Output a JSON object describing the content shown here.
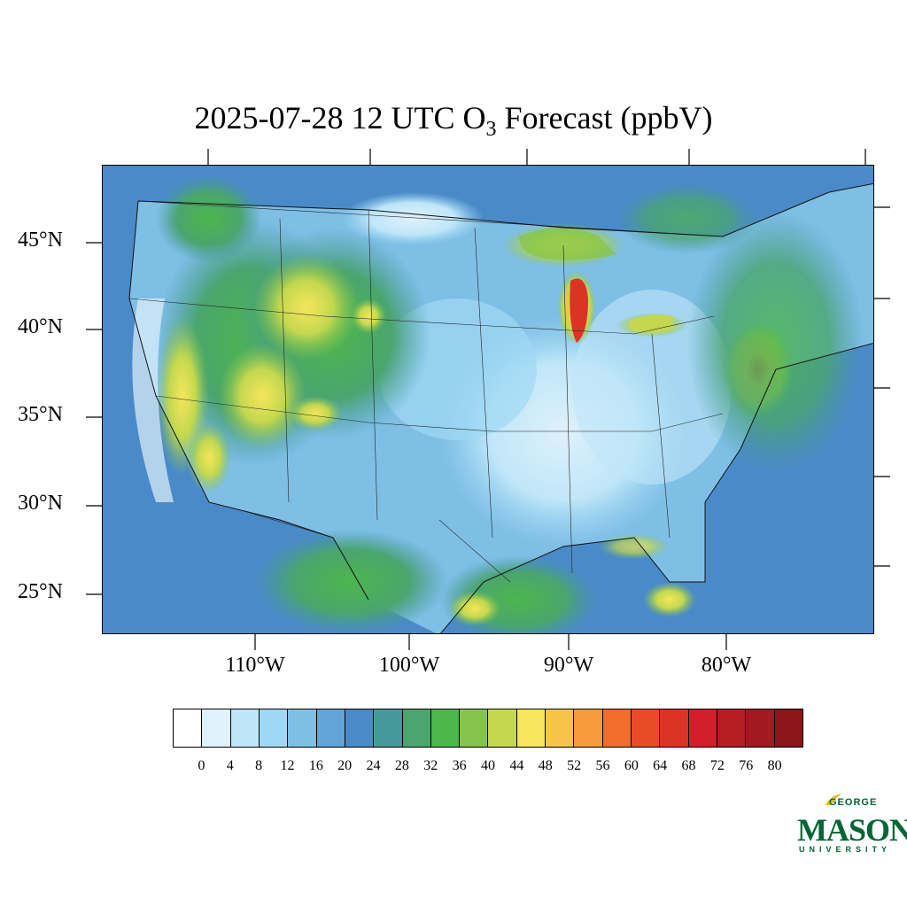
{
  "title": "2025-07-28 12 UTC O",
  "title_sub": "3",
  "title_rest": " Forecast (ppbV)",
  "lat_labels": [
    "45°N",
    "40°N",
    "35°N",
    "30°N",
    "25°N"
  ],
  "lon_labels": [
    "110°W",
    "100°W",
    "90°W",
    "80°W"
  ],
  "colorbar": {
    "labels": [
      "0",
      "4",
      "8",
      "12",
      "16",
      "20",
      "24",
      "28",
      "32",
      "36",
      "40",
      "44",
      "48",
      "52",
      "56",
      "60",
      "64",
      "68",
      "72",
      "76",
      "80"
    ],
    "colors": [
      "#ffffff",
      "#dff1fb",
      "#bfe6f8",
      "#9fd8f4",
      "#7fbfe6",
      "#62a3d8",
      "#4a8ac8",
      "#46999b",
      "#4aa56e",
      "#4db64c",
      "#86c44e",
      "#c4d84f",
      "#f5e65b",
      "#f8c349",
      "#f69b3b",
      "#f26c2c",
      "#e84b26",
      "#db3326",
      "#d21f2a",
      "#b81c24",
      "#a3191f",
      "#8b1519"
    ]
  },
  "logo": {
    "george": "GEORGE",
    "mason": "MASON",
    "university": "UNIVERSITY"
  }
}
